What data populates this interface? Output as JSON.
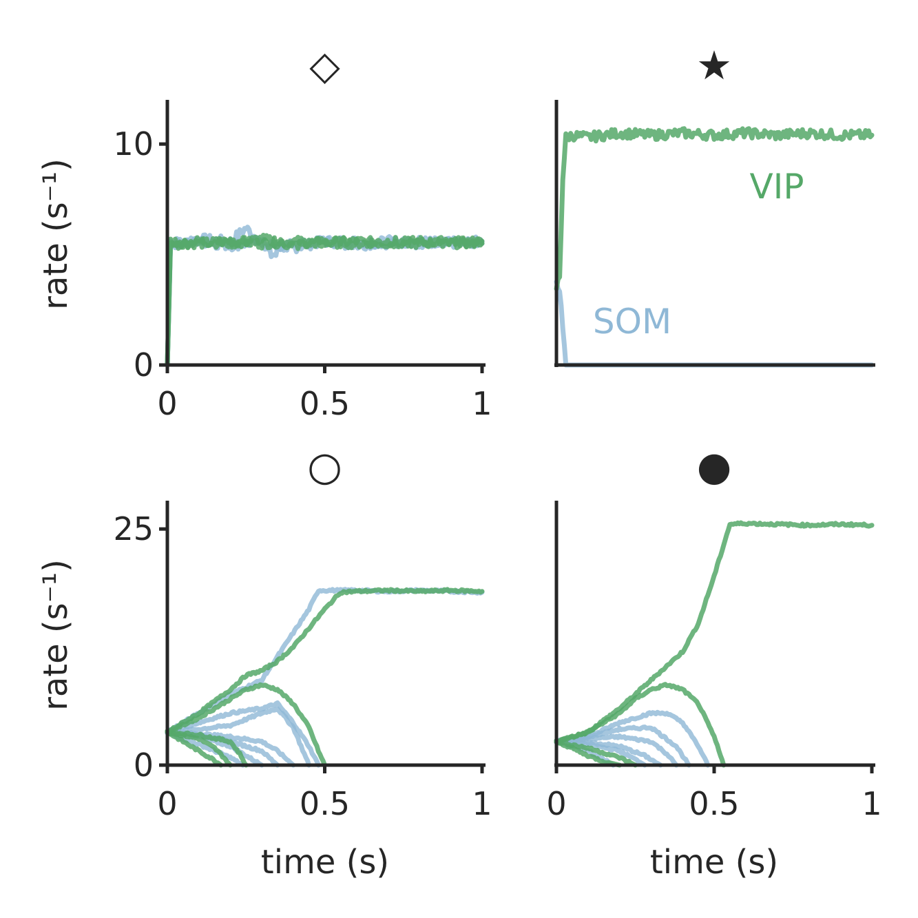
{
  "figure": {
    "ylabel_top": "rate (s⁻¹)",
    "ylabel_bottom": "rate (s⁻¹)",
    "xlabel_left": "time (s)",
    "xlabel_right": "time (s)"
  },
  "colors": {
    "SOM": "#8fb8d6",
    "VIP": "#55a868",
    "axis": "#262626"
  },
  "chart_data": [
    {
      "type": "line",
      "panel_marker": "◇",
      "xlim": [
        0,
        1
      ],
      "ylim": [
        0,
        12
      ],
      "xticks": [
        0,
        0.5,
        1
      ],
      "xtick_labels": [
        "0",
        "0.5",
        "1"
      ],
      "yticks": [
        0,
        10
      ],
      "ytick_labels": [
        "0",
        "10"
      ],
      "ylabel": "rate (s⁻¹)",
      "annotations": [],
      "series": [
        {
          "group": "SOM",
          "x": [
            0,
            0.01,
            0.05,
            0.1,
            0.2,
            0.25,
            0.3,
            0.4,
            0.5,
            0.6,
            0.7,
            0.8,
            0.9,
            1.0
          ],
          "y": [
            0,
            5.6,
            5.5,
            5.7,
            5.6,
            6.2,
            5.5,
            5.3,
            5.6,
            5.6,
            5.5,
            5.6,
            5.5,
            5.6
          ]
        },
        {
          "group": "SOM",
          "x": [
            0,
            0.01,
            0.1,
            0.2,
            0.3,
            0.33,
            0.4,
            0.5,
            0.6,
            0.7,
            0.8,
            0.9,
            1.0
          ],
          "y": [
            0,
            5.5,
            5.6,
            5.4,
            5.6,
            5.0,
            5.5,
            5.6,
            5.4,
            5.6,
            5.5,
            5.6,
            5.5
          ]
        },
        {
          "group": "VIP",
          "x": [
            0,
            0.01,
            0.1,
            0.2,
            0.3,
            0.4,
            0.5,
            0.6,
            0.7,
            0.8,
            0.9,
            1.0
          ],
          "y": [
            0,
            5.6,
            5.5,
            5.6,
            5.5,
            5.6,
            5.5,
            5.6,
            5.5,
            5.6,
            5.5,
            5.6
          ]
        },
        {
          "group": "VIP",
          "x": [
            0,
            0.01,
            0.1,
            0.2,
            0.3,
            0.4,
            0.5,
            0.6,
            0.7,
            0.8,
            0.9,
            1.0
          ],
          "y": [
            0,
            5.4,
            5.6,
            5.5,
            5.7,
            5.4,
            5.6,
            5.5,
            5.6,
            5.5,
            5.6,
            5.5
          ]
        }
      ]
    },
    {
      "type": "line",
      "panel_marker": "★",
      "xlim": [
        0,
        1
      ],
      "ylim": [
        0,
        12
      ],
      "xticks": [],
      "yticks": [],
      "annotations": [
        {
          "text": "VIP",
          "group": "VIP"
        },
        {
          "text": "SOM",
          "group": "SOM"
        }
      ],
      "series": [
        {
          "group": "SOM",
          "x": [
            0,
            0.01,
            0.02,
            0.03,
            1.0
          ],
          "y": [
            3.8,
            3.5,
            1.5,
            0,
            0
          ]
        },
        {
          "group": "VIP",
          "x": [
            0,
            0.01,
            0.02,
            0.03,
            0.05,
            0.1,
            0.2,
            0.3,
            0.4,
            0.5,
            0.6,
            0.7,
            0.8,
            0.9,
            1.0
          ],
          "y": [
            3.5,
            4.0,
            8.5,
            10.3,
            10.4,
            10.3,
            10.5,
            10.4,
            10.5,
            10.4,
            10.5,
            10.4,
            10.5,
            10.4,
            10.4
          ]
        }
      ]
    },
    {
      "type": "line",
      "panel_marker": "○",
      "xlim": [
        0,
        1
      ],
      "ylim": [
        0,
        28
      ],
      "xticks": [
        0,
        0.5,
        1
      ],
      "xtick_labels": [
        "0",
        "0.5",
        "1"
      ],
      "yticks": [
        0,
        25
      ],
      "ytick_labels": [
        "0",
        "25"
      ],
      "xlabel": "time (s)",
      "ylabel": "rate (s⁻¹)",
      "annotations": [],
      "series": [
        {
          "group": "SOM",
          "x": [
            0,
            0.05,
            0.1,
            0.15,
            0.2,
            0.24
          ],
          "y": [
            3.5,
            2.8,
            2.2,
            1.5,
            0.8,
            0
          ]
        },
        {
          "group": "SOM",
          "x": [
            0,
            0.1,
            0.2,
            0.25,
            0.3
          ],
          "y": [
            3.5,
            3.0,
            2.0,
            1.0,
            0
          ]
        },
        {
          "group": "SOM",
          "x": [
            0,
            0.1,
            0.2,
            0.3,
            0.35
          ],
          "y": [
            3.5,
            3.2,
            2.5,
            1.5,
            0
          ]
        },
        {
          "group": "SOM",
          "x": [
            0,
            0.1,
            0.2,
            0.3,
            0.35,
            0.4
          ],
          "y": [
            3.5,
            3.3,
            3.0,
            2.5,
            1.5,
            0
          ]
        },
        {
          "group": "SOM",
          "x": [
            0,
            0.1,
            0.2,
            0.3,
            0.35,
            0.4,
            0.45
          ],
          "y": [
            3.5,
            3.8,
            4.2,
            5.5,
            6.0,
            4.0,
            0
          ]
        },
        {
          "group": "SOM",
          "x": [
            0,
            0.1,
            0.2,
            0.3,
            0.35,
            0.4,
            0.45,
            0.48
          ],
          "y": [
            3.5,
            4.5,
            5.5,
            6.0,
            6.5,
            4.5,
            2.0,
            0
          ]
        },
        {
          "group": "SOM",
          "x": [
            0,
            0.1,
            0.2,
            0.3,
            0.35,
            0.4,
            0.45,
            0.48,
            0.5,
            0.6,
            0.7,
            0.8,
            0.9,
            1.0
          ],
          "y": [
            3.5,
            5.5,
            7.5,
            9.0,
            11.5,
            14.0,
            16.5,
            18.5,
            18.5,
            18.5,
            18.4,
            18.5,
            18.4,
            18.3
          ]
        },
        {
          "group": "VIP",
          "x": [
            0,
            0.05,
            0.1,
            0.15,
            0.17
          ],
          "y": [
            3.5,
            2.5,
            1.5,
            0.5,
            0
          ]
        },
        {
          "group": "VIP",
          "x": [
            0,
            0.1,
            0.15,
            0.18,
            0.2
          ],
          "y": [
            3.5,
            2.8,
            1.8,
            0.8,
            0
          ]
        },
        {
          "group": "VIP",
          "x": [
            0,
            0.1,
            0.2,
            0.23,
            0.25
          ],
          "y": [
            3.5,
            3.2,
            2.5,
            1.2,
            0
          ]
        },
        {
          "group": "VIP",
          "x": [
            0,
            0.1,
            0.2,
            0.25,
            0.3,
            0.35,
            0.4,
            0.45,
            0.48,
            0.5
          ],
          "y": [
            3.5,
            5.0,
            7.0,
            8.0,
            8.5,
            8.0,
            6.5,
            4.0,
            1.5,
            0
          ]
        },
        {
          "group": "VIP",
          "x": [
            0,
            0.1,
            0.2,
            0.25,
            0.3,
            0.35,
            0.4,
            0.45,
            0.5,
            0.55,
            0.6,
            0.7,
            0.8,
            0.9,
            1.0
          ],
          "y": [
            3.5,
            5.5,
            8.0,
            9.5,
            10.0,
            11.0,
            12.5,
            14.5,
            16.5,
            18.3,
            18.4,
            18.5,
            18.4,
            18.5,
            18.4
          ]
        }
      ]
    },
    {
      "type": "line",
      "panel_marker": "●",
      "xlim": [
        0,
        1
      ],
      "ylim": [
        0,
        28
      ],
      "xticks": [
        0,
        0.5,
        1
      ],
      "xtick_labels": [
        "0",
        "0.5",
        "1"
      ],
      "yticks": [],
      "xlabel": "time (s)",
      "annotations": [],
      "series": [
        {
          "group": "SOM",
          "x": [
            0,
            0.05,
            0.1,
            0.15,
            0.18
          ],
          "y": [
            2.5,
            2.0,
            1.5,
            0.6,
            0
          ]
        },
        {
          "group": "SOM",
          "x": [
            0,
            0.1,
            0.2,
            0.25,
            0.28
          ],
          "y": [
            2.5,
            2.2,
            1.5,
            0.6,
            0
          ]
        },
        {
          "group": "SOM",
          "x": [
            0,
            0.1,
            0.2,
            0.28,
            0.33
          ],
          "y": [
            2.5,
            2.4,
            2.0,
            1.0,
            0
          ]
        },
        {
          "group": "SOM",
          "x": [
            0,
            0.1,
            0.2,
            0.3,
            0.35,
            0.38
          ],
          "y": [
            2.5,
            2.8,
            3.0,
            2.5,
            1.2,
            0
          ]
        },
        {
          "group": "SOM",
          "x": [
            0,
            0.1,
            0.2,
            0.3,
            0.38,
            0.42
          ],
          "y": [
            2.5,
            3.0,
            3.8,
            4.0,
            2.0,
            0
          ]
        },
        {
          "group": "SOM",
          "x": [
            0,
            0.1,
            0.2,
            0.3,
            0.35,
            0.4,
            0.45,
            0.48
          ],
          "y": [
            2.5,
            3.0,
            4.5,
            5.5,
            5.5,
            4.5,
            2.0,
            0
          ]
        },
        {
          "group": "VIP",
          "x": [
            0,
            0.05,
            0.1,
            0.15,
            0.2
          ],
          "y": [
            2.5,
            1.8,
            1.0,
            0.4,
            0
          ]
        },
        {
          "group": "VIP",
          "x": [
            0,
            0.1,
            0.2,
            0.25
          ],
          "y": [
            2.5,
            1.8,
            0.8,
            0
          ]
        },
        {
          "group": "VIP",
          "x": [
            0,
            0.1,
            0.2,
            0.25,
            0.3,
            0.35,
            0.4,
            0.45,
            0.5,
            0.53
          ],
          "y": [
            2.5,
            3.5,
            5.5,
            7.0,
            8.0,
            8.5,
            8.0,
            6.5,
            3.0,
            0
          ]
        },
        {
          "group": "VIP",
          "x": [
            0,
            0.1,
            0.2,
            0.3,
            0.35,
            0.4,
            0.45,
            0.5,
            0.55,
            0.6,
            0.7,
            0.8,
            0.9,
            1.0
          ],
          "y": [
            2.5,
            3.5,
            6.0,
            9.0,
            10.5,
            12.0,
            15.0,
            20.0,
            25.5,
            25.6,
            25.5,
            25.4,
            25.5,
            25.4
          ]
        }
      ]
    }
  ]
}
